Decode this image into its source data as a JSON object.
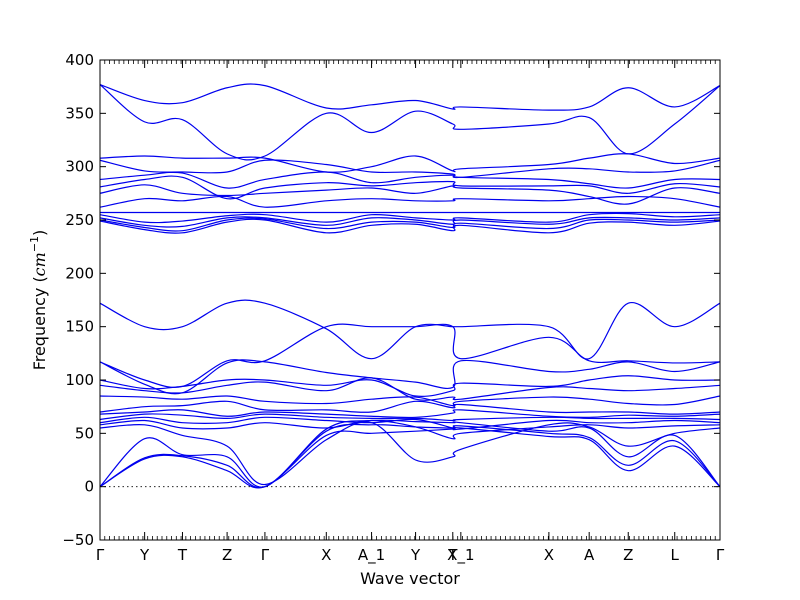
{
  "chart_data": {
    "type": "line",
    "title": "",
    "xlabel": "Wave vector",
    "ylabel": "Frequency",
    "ylabel_unit": "cm",
    "ylabel_unit_exp": "−1",
    "ylim": [
      -50,
      400
    ],
    "yticks": [
      -50,
      0,
      50,
      100,
      150,
      200,
      250,
      300,
      350,
      400
    ],
    "ytick_labels": [
      "−50",
      "0",
      "50",
      "100",
      "150",
      "200",
      "250",
      "300",
      "350",
      "400"
    ],
    "xlim": [
      0,
      12
    ],
    "high_symmetry_points": [
      {
        "label": "Γ",
        "x": 0
      },
      {
        "label": "Y",
        "x": 0.72
      },
      {
        "label": "T",
        "x": 1.33
      },
      {
        "label": "Z",
        "x": 2.05
      },
      {
        "label": "Γ",
        "x": 2.66
      },
      {
        "label": "X",
        "x": 3.65
      },
      {
        "label": "A_1",
        "x": 4.38
      },
      {
        "label": "Y",
        "x": 5.09
      },
      {
        "label": "T",
        "x": 5.69
      },
      {
        "label": "X_1",
        "x": 5.82
      },
      {
        "label": "X",
        "x": 7.24
      },
      {
        "label": "A",
        "x": 7.89
      },
      {
        "label": "Z",
        "x": 8.52
      },
      {
        "label": "L",
        "x": 9.27
      },
      {
        "label": "Γ",
        "x": 10.0
      }
    ],
    "zero_line": true,
    "series": [
      {
        "values": [
          0,
          26,
          28,
          15,
          0,
          48,
          50,
          52,
          54,
          55,
          47,
          44,
          15,
          38,
          0
        ]
      },
      {
        "values": [
          0,
          27,
          29,
          20,
          0,
          52,
          58,
          56,
          55,
          57,
          50,
          46,
          20,
          43,
          0
        ]
      },
      {
        "values": [
          0,
          45,
          30,
          28,
          0,
          54,
          62,
          61,
          60,
          60,
          52,
          55,
          28,
          48,
          0
        ]
      },
      {
        "values": [
          55,
          58,
          48,
          38,
          2,
          44,
          60,
          25,
          28,
          35,
          58,
          56,
          38,
          50,
          55
        ]
      },
      {
        "values": [
          58,
          62,
          55,
          55,
          60,
          55,
          62,
          56,
          45,
          50,
          56,
          58,
          55,
          57,
          58
        ]
      },
      {
        "values": [
          60,
          65,
          60,
          60,
          65,
          62,
          60,
          63,
          55,
          54,
          62,
          60,
          60,
          62,
          60
        ]
      },
      {
        "values": [
          63,
          68,
          67,
          64,
          68,
          65,
          64,
          64,
          62,
          63,
          65,
          64,
          64,
          64,
          63
        ]
      },
      {
        "values": [
          68,
          70,
          72,
          66,
          70,
          68,
          66,
          65,
          69,
          72,
          66,
          65,
          67,
          66,
          68
        ]
      },
      {
        "values": [
          70,
          75,
          76,
          80,
          72,
          72,
          70,
          80,
          74,
          77,
          70,
          70,
          70,
          68,
          70
        ]
      },
      {
        "values": [
          85,
          84,
          82,
          85,
          80,
          78,
          82,
          84,
          76,
          80,
          84,
          82,
          78,
          77,
          85
        ]
      },
      {
        "values": [
          95,
          90,
          88,
          95,
          98,
          90,
          102,
          82,
          84,
          82,
          93,
          92,
          90,
          92,
          95
        ]
      },
      {
        "values": [
          100,
          92,
          94,
          100,
          100,
          95,
          100,
          85,
          90,
          97,
          94,
          100,
          104,
          100,
          100
        ]
      },
      {
        "values": [
          117,
          96,
          88,
          116,
          117,
          107,
          102,
          98,
          93,
          118,
          108,
          110,
          117,
          108,
          117
        ]
      },
      {
        "values": [
          117,
          100,
          94,
          118,
          118,
          150,
          150,
          150,
          150,
          120,
          140,
          118,
          118,
          116,
          117
        ]
      },
      {
        "values": [
          172,
          150,
          150,
          172,
          172,
          148,
          120,
          150,
          150,
          150,
          150,
          120,
          172,
          150,
          172
        ]
      },
      {
        "values": [
          249,
          241,
          238,
          248,
          250,
          238,
          245,
          246,
          240,
          245,
          238,
          247,
          248,
          245,
          249
        ]
      },
      {
        "values": [
          250,
          243,
          240,
          250,
          251,
          242,
          248,
          248,
          243,
          247,
          242,
          250,
          250,
          248,
          250
        ]
      },
      {
        "values": [
          252,
          245,
          244,
          252,
          252,
          245,
          252,
          250,
          246,
          250,
          246,
          252,
          252,
          250,
          252
        ]
      },
      {
        "values": [
          255,
          248,
          249,
          254,
          255,
          248,
          255,
          252,
          250,
          252,
          248,
          255,
          256,
          253,
          255
        ]
      },
      {
        "values": [
          257,
          257,
          257,
          257,
          257,
          257,
          257,
          257,
          257,
          257,
          257,
          257,
          257,
          257,
          257
        ]
      },
      {
        "values": [
          262,
          270,
          268,
          272,
          262,
          268,
          270,
          268,
          268,
          270,
          268,
          270,
          272,
          270,
          262
        ]
      },
      {
        "values": [
          275,
          283,
          275,
          273,
          275,
          278,
          280,
          275,
          282,
          280,
          278,
          272,
          265,
          280,
          275
        ]
      },
      {
        "values": [
          281,
          288,
          290,
          270,
          280,
          285,
          282,
          285,
          286,
          282,
          282,
          282,
          275,
          284,
          281
        ]
      },
      {
        "values": [
          288,
          292,
          294,
          280,
          288,
          295,
          285,
          290,
          292,
          290,
          288,
          284,
          280,
          288,
          288
        ]
      },
      {
        "values": [
          306,
          296,
          295,
          295,
          306,
          302,
          295,
          295,
          293,
          290,
          298,
          298,
          295,
          296,
          306
        ]
      },
      {
        "values": [
          308,
          310,
          308,
          308,
          308,
          295,
          300,
          310,
          296,
          298,
          302,
          308,
          312,
          303,
          308
        ]
      },
      {
        "values": [
          377,
          342,
          344,
          312,
          310,
          350,
          332,
          352,
          340,
          335,
          340,
          346,
          312,
          340,
          376
        ]
      },
      {
        "values": [
          377,
          362,
          360,
          374,
          376,
          355,
          358,
          362,
          354,
          356,
          353,
          356,
          374,
          356,
          376
        ]
      }
    ]
  }
}
